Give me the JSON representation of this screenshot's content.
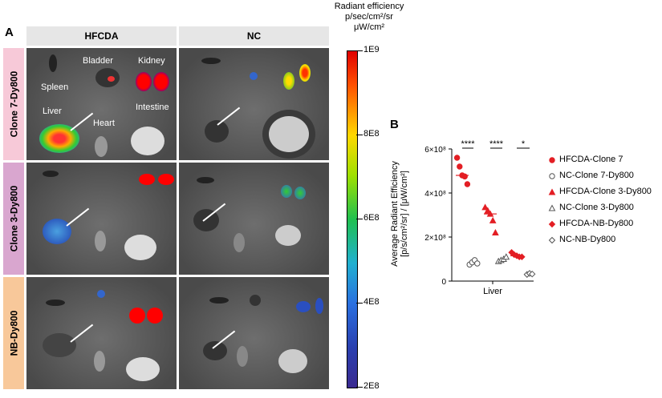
{
  "panel_a": {
    "letter": "A",
    "columns": [
      "HFCDA",
      "NC"
    ],
    "rows": [
      "Clone 7-Dy800",
      "Clone 3-Dy800",
      "NB-Dy800"
    ],
    "row_colors": [
      "#f7c9d8",
      "#d9a6cf",
      "#f8c89a"
    ],
    "organ_labels": {
      "spleen": "Spleen",
      "bladder": "Bladder",
      "kidney": "Kidney",
      "liver": "Liver",
      "heart": "Heart",
      "intestine": "Intestine"
    }
  },
  "colorbar": {
    "title": [
      "Radiant efficiency",
      "p/sec/cm²/sr",
      "μW/cm²"
    ],
    "ticks": [
      "1E9",
      "8E8",
      "6E8",
      "4E8",
      "2E8"
    ],
    "colormap": "rainbow (red=high, purple=low)"
  },
  "chart_data": {
    "type": "scatter",
    "panel": "B",
    "ylabel": [
      "Average Radiant Efficiency",
      "[p/s/cm²/sr] / [μW/cm²]"
    ],
    "xlabel": "Liver",
    "ylim": [
      0,
      600000000
    ],
    "yticks": [
      "0",
      "2×10⁸",
      "4×10⁸",
      "6×10⁸"
    ],
    "ytick_values": [
      0,
      200000000,
      400000000,
      600000000
    ],
    "series": [
      {
        "name": "HFCDA-Clone 7",
        "marker": "circle-filled",
        "color": "#e31e24",
        "values": [
          560000000,
          520000000,
          480000000,
          475000000,
          440000000
        ],
        "median": 480000000
      },
      {
        "name": "NC-Clone 7-Dy800",
        "marker": "circle-open",
        "color": "#555555",
        "values": [
          75000000,
          85000000,
          95000000,
          80000000
        ]
      },
      {
        "name": "HFCDA-Clone 3-Dy800",
        "marker": "triangle-filled",
        "color": "#e31e24",
        "values": [
          335000000,
          320000000,
          305000000,
          275000000,
          220000000
        ],
        "median": 305000000
      },
      {
        "name": "NC-Clone 3-Dy800",
        "marker": "triangle-open",
        "color": "#555555",
        "values": [
          90000000,
          95000000,
          100000000,
          110000000
        ]
      },
      {
        "name": "HFCDA-NB-Dy800",
        "marker": "diamond-filled",
        "color": "#e31e24",
        "values": [
          130000000,
          120000000,
          115000000,
          110000000,
          110000000
        ],
        "median": 115000000
      },
      {
        "name": "NC-NB-Dy800",
        "marker": "diamond-open",
        "color": "#555555",
        "values": [
          30000000,
          35000000,
          32000000
        ]
      }
    ],
    "significance": [
      "****",
      "****",
      "*"
    ],
    "legend": "right",
    "grid": false
  }
}
